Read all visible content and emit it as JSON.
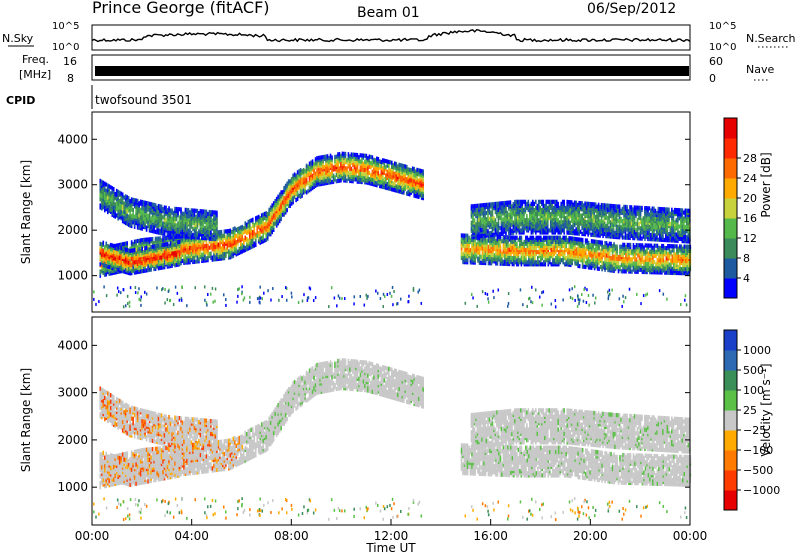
{
  "header": {
    "station": "Prince George (fitACF)",
    "beam": "Beam 01",
    "date": "06/Sep/2012"
  },
  "noise_panel": {
    "left_label": "N.Sky",
    "left_ticks": [
      "10^5",
      "10^0"
    ],
    "right_ticks": [
      "10^5",
      "10^0"
    ],
    "right_label": "N.Search"
  },
  "freq_panel": {
    "label_line1": "Freq.",
    "label_line2": "[MHz]",
    "left_ticks": [
      "16",
      "8"
    ],
    "right_ticks": [
      "60",
      "0"
    ],
    "right_label": "Nave"
  },
  "cpid_panel": {
    "label": "CPID",
    "value": "twofsound 3501"
  },
  "colors": {
    "power_scale": [
      "#0000ff",
      "#1e5aa0",
      "#3a8a5a",
      "#54b84a",
      "#c8d23c",
      "#ffaa00",
      "#ff6a00",
      "#ff2a00",
      "#e60000"
    ],
    "velocity_scale": [
      "#1a3fc8",
      "#2e6ab4",
      "#3a8e58",
      "#5ac046",
      "#c8c8c8",
      "#ffaa00",
      "#ff7a00",
      "#ff3c00",
      "#e60000"
    ]
  },
  "chart_data": [
    {
      "type": "heatmap",
      "quantity": "power",
      "ylabel": "Slant Range [km]",
      "yticks": [
        1000,
        2000,
        3000,
        4000
      ],
      "ylim": [
        200,
        4600
      ],
      "xlim": [
        0,
        24
      ],
      "colorbar": {
        "label": "Power [dB]",
        "ticks": [
          "4",
          "8",
          "12",
          "16",
          "20",
          "24",
          "28"
        ]
      },
      "bands": [
        {
          "x": [
            0.3,
            13.3
          ],
          "range_path": [
            [
              0.3,
              1300
            ],
            [
              2,
              1500
            ],
            [
              4,
              1600
            ],
            [
              5.5,
              1700
            ],
            [
              7,
              2100
            ],
            [
              8,
              2900
            ],
            [
              9,
              3300
            ],
            [
              10,
              3400
            ],
            [
              11,
              3350
            ],
            [
              12,
              3200
            ],
            [
              13.3,
              3000
            ]
          ],
          "width": 300,
          "level": 7
        },
        {
          "x": [
            0.3,
            3.5
          ],
          "range_path": [
            [
              0.3,
              1500
            ],
            [
              1.5,
              1300
            ],
            [
              3.5,
              1500
            ]
          ],
          "width": 250,
          "level": 8
        },
        {
          "x": [
            0.3,
            5
          ],
          "range_path": [
            [
              0.3,
              2800
            ],
            [
              1.5,
              2400
            ],
            [
              3,
              2200
            ],
            [
              5,
              2100
            ]
          ],
          "width": 300,
          "level": 3
        },
        {
          "x": [
            14.8,
            24
          ],
          "range_path": [
            [
              14.8,
              1600
            ],
            [
              17,
              1550
            ],
            [
              19,
              1550
            ],
            [
              21,
              1400
            ],
            [
              24,
              1350
            ]
          ],
          "width": 300,
          "level": 6
        },
        {
          "x": [
            15.2,
            24
          ],
          "range_path": [
            [
              15.2,
              2200
            ],
            [
              17,
              2300
            ],
            [
              19,
              2300
            ],
            [
              21,
              2200
            ],
            [
              24,
              2100
            ]
          ],
          "width": 350,
          "level": 3
        }
      ]
    },
    {
      "type": "heatmap",
      "quantity": "velocity",
      "xlabel": "Time UT",
      "ylabel": "Slant Range [km]",
      "yticks": [
        1000,
        2000,
        3000,
        4000
      ],
      "ylim": [
        200,
        4600
      ],
      "xlim": [
        0,
        24
      ],
      "xticks": [
        "00:00",
        "04:00",
        "08:00",
        "12:00",
        "16:00",
        "20:00",
        "00:00"
      ],
      "colorbar": {
        "label": "Velocity [m s⁻¹]",
        "ticks": [
          "1000",
          "500",
          "100",
          "25",
          "−25",
          "−100",
          "−500",
          "−1000"
        ]
      }
    }
  ]
}
